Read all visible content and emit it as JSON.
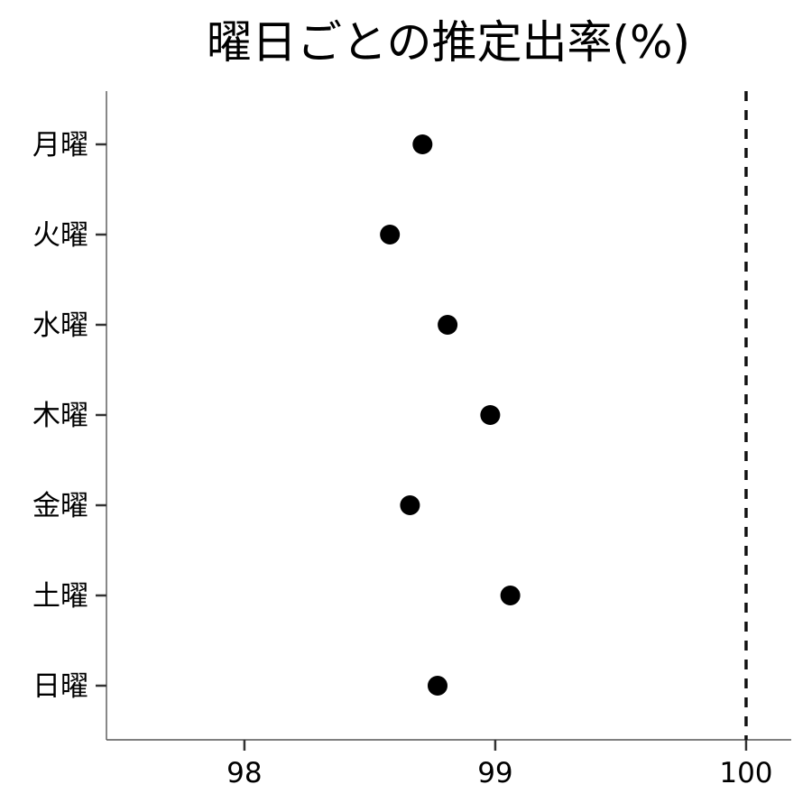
{
  "chart_data": {
    "type": "scatter",
    "title": "曜日ごとの推定出率(%)",
    "xlabel": "",
    "ylabel": "",
    "categories": [
      "月曜",
      "火曜",
      "水曜",
      "木曜",
      "金曜",
      "土曜",
      "日曜"
    ],
    "values": [
      98.71,
      98.58,
      98.81,
      98.98,
      98.66,
      99.06,
      98.77
    ],
    "xlim": [
      97.45,
      100.18
    ],
    "x_ticks": [
      98,
      99,
      100
    ],
    "x_tick_labels": [
      "98",
      "99",
      "100"
    ],
    "reference_line": {
      "x": 100,
      "style": "dashed"
    },
    "grid": false,
    "legend": "none"
  }
}
